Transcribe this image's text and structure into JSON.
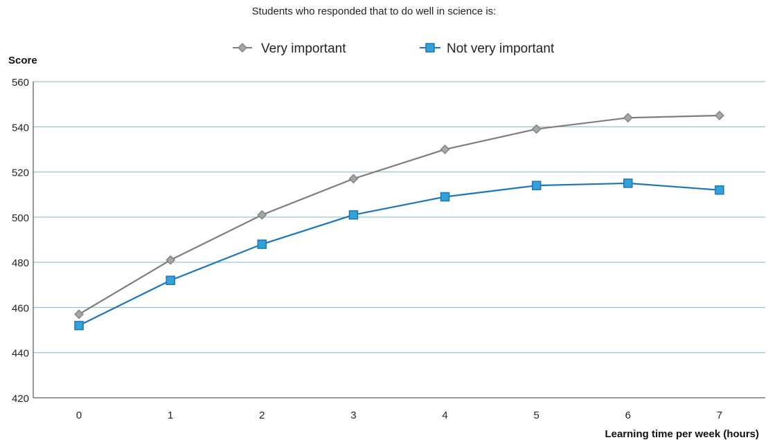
{
  "chart_data": {
    "type": "line",
    "subtitle": "Students who responded that to do well in science is:",
    "xlabel": "Learning time per week (hours)",
    "ylabel": "Score",
    "x": [
      0,
      1,
      2,
      3,
      4,
      5,
      6,
      7
    ],
    "xticks": [
      "0",
      "1",
      "2",
      "3",
      "4",
      "5",
      "6",
      "7"
    ],
    "ylim": [
      420,
      560
    ],
    "yticks": [
      420,
      440,
      460,
      480,
      500,
      520,
      540,
      560
    ],
    "grid": true,
    "legend_position": "top-center",
    "series": [
      {
        "name": "Very important",
        "marker": "diamond",
        "color": "#7d7d7d",
        "marker_fill": "#a6a6a6",
        "values": [
          457,
          481,
          501,
          517,
          530,
          539,
          544,
          545
        ]
      },
      {
        "name": "Not very important",
        "marker": "square",
        "color": "#1b75ba",
        "marker_fill": "#34a2d6",
        "values": [
          452,
          472,
          488,
          501,
          509,
          514,
          515,
          512
        ]
      }
    ]
  }
}
